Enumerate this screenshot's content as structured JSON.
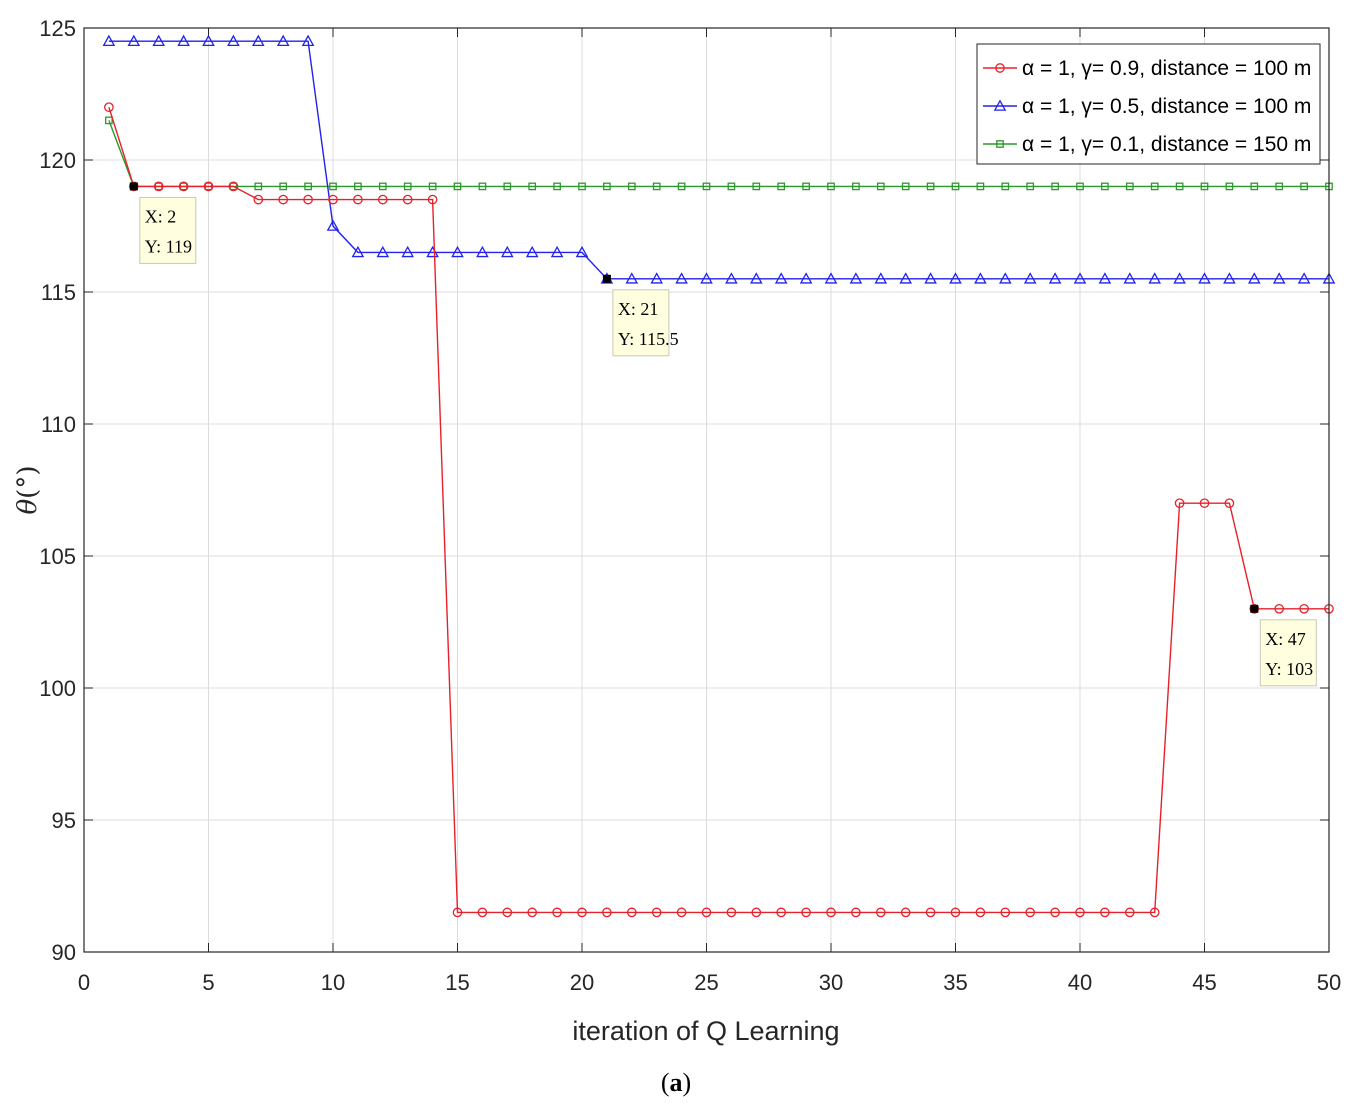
{
  "chart_data": {
    "type": "line",
    "title": "",
    "xlabel": "iteration of Q Learning",
    "ylabel": "θ(°)",
    "ylabel_symbol": "θ",
    "ylabel_unit": "(°)",
    "xlim": [
      0,
      50
    ],
    "ylim": [
      90,
      125
    ],
    "xticks": [
      0,
      5,
      10,
      15,
      20,
      25,
      30,
      35,
      40,
      45,
      50
    ],
    "yticks": [
      90,
      95,
      100,
      105,
      110,
      115,
      120,
      125
    ],
    "grid": true,
    "legend_position": "top-right",
    "x": [
      1,
      2,
      3,
      4,
      5,
      6,
      7,
      8,
      9,
      10,
      11,
      12,
      13,
      14,
      15,
      16,
      17,
      18,
      19,
      20,
      21,
      22,
      23,
      24,
      25,
      26,
      27,
      28,
      29,
      30,
      31,
      32,
      33,
      34,
      35,
      36,
      37,
      38,
      39,
      40,
      41,
      42,
      43,
      44,
      45,
      46,
      47,
      48,
      49,
      50
    ],
    "series": [
      {
        "name": "α = 1, γ= 0.9, distance = 100 m",
        "color": "#e8202a",
        "marker": "circle",
        "values": [
          122,
          119,
          119,
          119,
          119,
          119,
          118.5,
          118.5,
          118.5,
          118.5,
          118.5,
          118.5,
          118.5,
          118.5,
          91.5,
          91.5,
          91.5,
          91.5,
          91.5,
          91.5,
          91.5,
          91.5,
          91.5,
          91.5,
          91.5,
          91.5,
          91.5,
          91.5,
          91.5,
          91.5,
          91.5,
          91.5,
          91.5,
          91.5,
          91.5,
          91.5,
          91.5,
          91.5,
          91.5,
          91.5,
          91.5,
          91.5,
          91.5,
          107,
          107,
          107,
          103,
          103,
          103,
          103
        ]
      },
      {
        "name": "α = 1, γ= 0.5, distance = 100 m",
        "color": "#2222ee",
        "marker": "triangle",
        "values": [
          124.5,
          124.5,
          124.5,
          124.5,
          124.5,
          124.5,
          124.5,
          124.5,
          124.5,
          117.5,
          116.5,
          116.5,
          116.5,
          116.5,
          116.5,
          116.5,
          116.5,
          116.5,
          116.5,
          116.5,
          115.5,
          115.5,
          115.5,
          115.5,
          115.5,
          115.5,
          115.5,
          115.5,
          115.5,
          115.5,
          115.5,
          115.5,
          115.5,
          115.5,
          115.5,
          115.5,
          115.5,
          115.5,
          115.5,
          115.5,
          115.5,
          115.5,
          115.5,
          115.5,
          115.5,
          115.5,
          115.5,
          115.5,
          115.5,
          115.5
        ]
      },
      {
        "name": "α = 1, γ= 0.1, distance = 150 m",
        "color": "#2a9a2a",
        "marker": "square",
        "values": [
          121.5,
          119,
          119,
          119,
          119,
          119,
          119,
          119,
          119,
          119,
          119,
          119,
          119,
          119,
          119,
          119,
          119,
          119,
          119,
          119,
          119,
          119,
          119,
          119,
          119,
          119,
          119,
          119,
          119,
          119,
          119,
          119,
          119,
          119,
          119,
          119,
          119,
          119,
          119,
          119,
          119,
          119,
          119,
          119,
          119,
          119,
          119,
          119,
          119,
          119
        ]
      }
    ],
    "annotations": [
      {
        "x": 2,
        "y": 119,
        "line1": "X: 2",
        "line2": "Y: 119"
      },
      {
        "x": 21,
        "y": 115.5,
        "line1": "X: 21",
        "line2": "Y: 115.5"
      },
      {
        "x": 47,
        "y": 103,
        "line1": "X: 47",
        "line2": "Y: 103"
      }
    ]
  },
  "caption": {
    "open": "(",
    "letter": "a",
    "close": ")"
  }
}
